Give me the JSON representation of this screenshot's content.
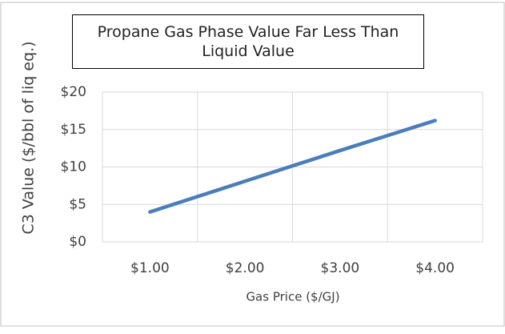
{
  "chart_data": {
    "type": "line",
    "title": "Propane Gas Phase Value Far Less Than Liquid Value",
    "x_label": "Gas  Price ($/GJ)",
    "y_label": "C3 Value ($/bbl of liq eq.)",
    "categories": [
      "$1.00",
      "$2.00",
      "$3.00",
      "$4.00"
    ],
    "series": [
      {
        "name": "C3 Value",
        "color": "#4a7ebb",
        "values": [
          4,
          8.1,
          12.2,
          16.2
        ]
      }
    ],
    "ylim": [
      0,
      20
    ],
    "yticks": [
      {
        "value": 0,
        "label": "$0"
      },
      {
        "value": 5,
        "label": "$5"
      },
      {
        "value": 10,
        "label": "$10"
      },
      {
        "value": 15,
        "label": "$15"
      },
      {
        "value": 20,
        "label": "$20"
      }
    ],
    "grid": true
  }
}
